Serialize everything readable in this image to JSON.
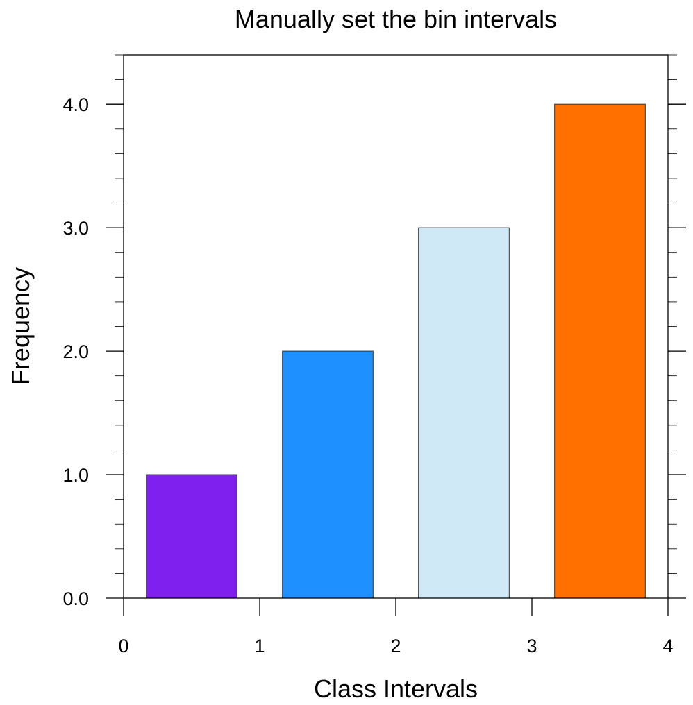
{
  "chart_data": {
    "type": "bar",
    "title": "Manually set the bin intervals",
    "xlabel": "Class Intervals",
    "ylabel": "Frequency",
    "bins": [
      [
        0,
        1
      ],
      [
        1,
        2
      ],
      [
        2,
        3
      ],
      [
        3,
        4
      ]
    ],
    "values": [
      1,
      2,
      3,
      4
    ],
    "colors": [
      "#7f20ee",
      "#1e90ff",
      "#d0e9f7",
      "#ff7000"
    ],
    "xlim": [
      0,
      4
    ],
    "ylim": [
      0,
      4.4
    ],
    "xticks": [
      0,
      1,
      2,
      3,
      4
    ],
    "xtick_labels": [
      "0",
      "1",
      "2",
      "3",
      "4"
    ],
    "yticks": [
      0,
      1,
      2,
      3,
      4
    ],
    "ytick_labels": [
      "0.0",
      "1.0",
      "2.0",
      "3.0",
      "4.0"
    ],
    "y_minor_step": 0.2,
    "grid": false,
    "legend": "none"
  }
}
